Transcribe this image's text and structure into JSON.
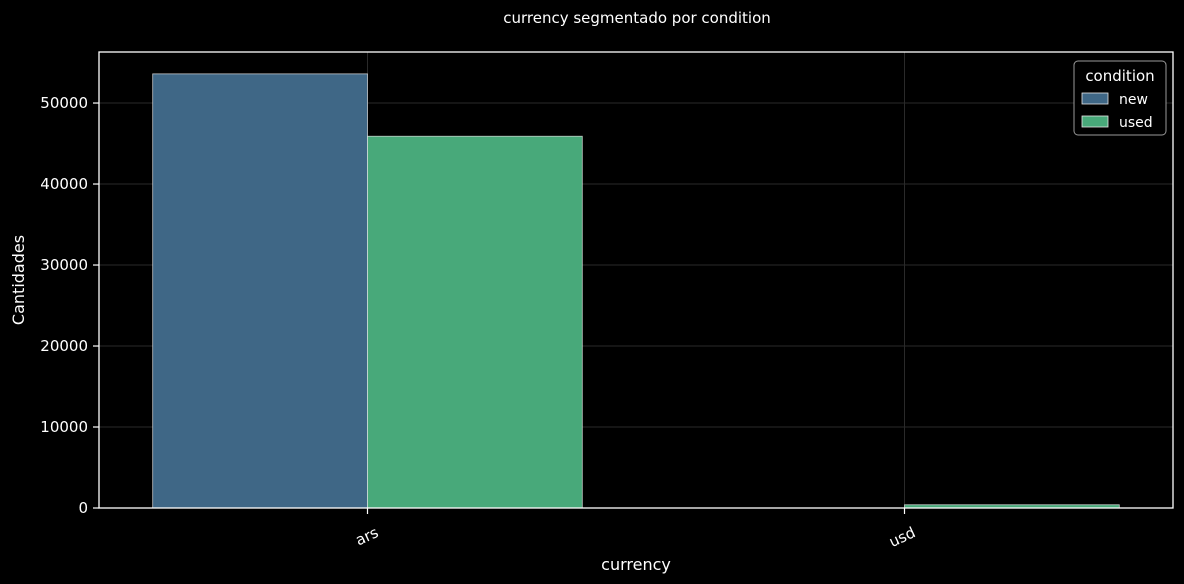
{
  "chart_data": {
    "type": "bar",
    "title": "currency segmentado por condition",
    "xlabel": "currency",
    "ylabel": "Cantidades",
    "categories": [
      "ars",
      "usd"
    ],
    "series": [
      {
        "name": "new",
        "values": [
          53600,
          0
        ],
        "color": "#3f6786"
      },
      {
        "name": "used",
        "values": [
          45900,
          400
        ],
        "color": "#48a97a"
      }
    ],
    "ylim": [
      0,
      56300
    ],
    "yticks": [
      0,
      10000,
      20000,
      30000,
      40000,
      50000
    ],
    "grid": true,
    "legend": {
      "title": "condition",
      "placement": "top-right"
    }
  }
}
